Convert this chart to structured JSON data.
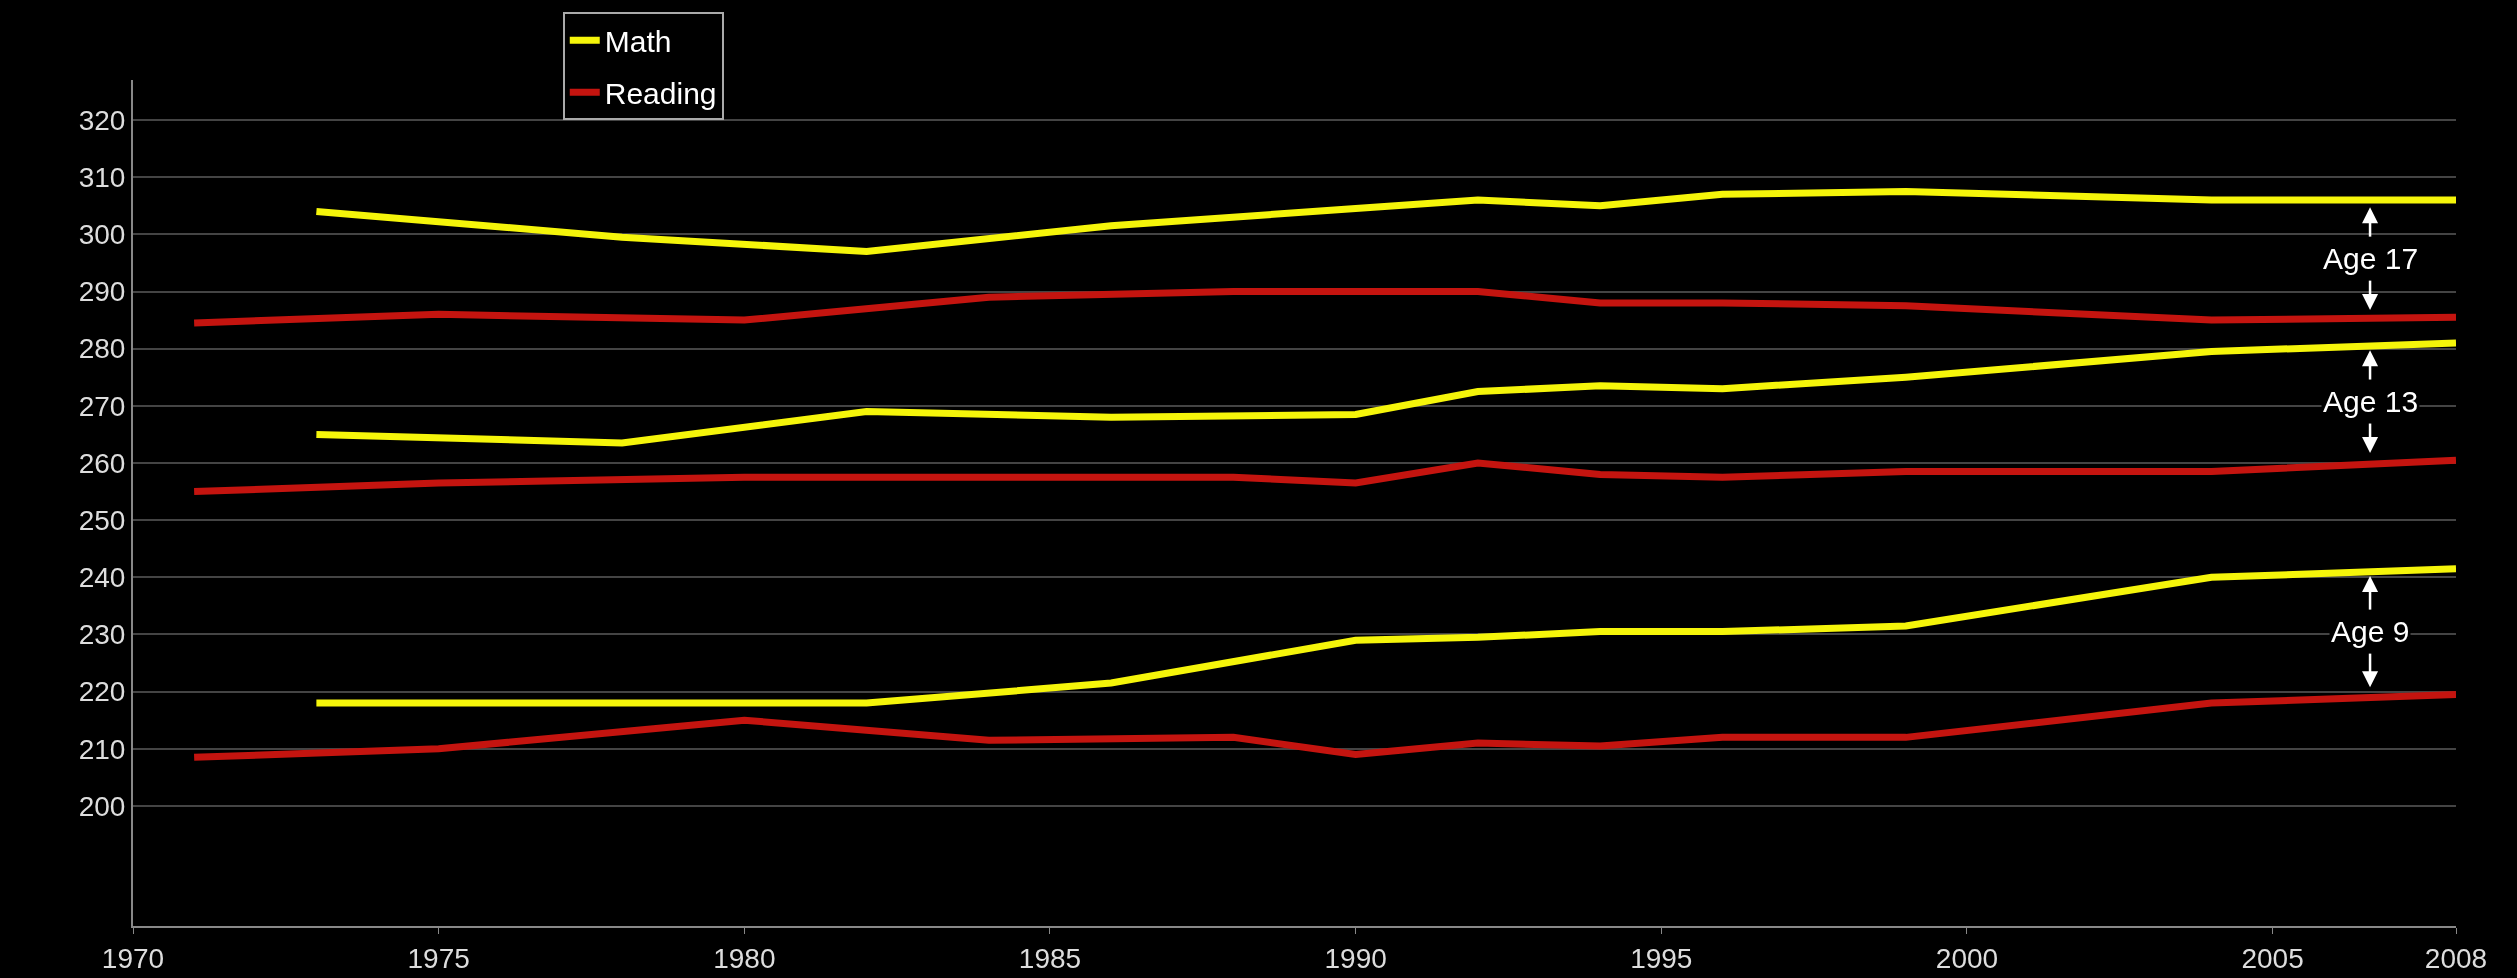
{
  "chart_data": {
    "type": "line",
    "xlim": [
      1970,
      2008
    ],
    "xticks": [
      1970,
      1975,
      1980,
      1985,
      1990,
      1995,
      2000,
      2005,
      2008
    ],
    "ylim": [
      179,
      327
    ],
    "yticks": [
      200,
      210,
      220,
      230,
      240,
      250,
      260,
      270,
      280,
      290,
      300,
      310,
      320
    ],
    "grid": "y",
    "legend": "top left",
    "marker": "none",
    "line_style": "solid",
    "series": [
      {
        "name": "Math",
        "color": "#f5f50a",
        "x": [
          1973,
          1978,
          1982,
          1986,
          1990,
          1992,
          1994,
          1996,
          1999,
          2004,
          2008
        ],
        "values": [
          304,
          299.5,
          297,
          301.5,
          304.5,
          306,
          305,
          307,
          307.5,
          306,
          306
        ]
      },
      {
        "name": "Reading",
        "color": "#c4140f",
        "x": [
          1971,
          1975,
          1980,
          1984,
          1988,
          1990,
          1992,
          1994,
          1996,
          1999,
          2004,
          2008
        ],
        "values": [
          284.5,
          286,
          285,
          289,
          290,
          290,
          290,
          288,
          288,
          287.5,
          285,
          285.5
        ]
      },
      {
        "color": "#f5f50a",
        "x": [
          1973,
          1978,
          1982,
          1986,
          1990,
          1992,
          1994,
          1996,
          1999,
          2004,
          2008
        ],
        "values": [
          265,
          263.5,
          269,
          268,
          268.5,
          272.5,
          273.5,
          273,
          275,
          279.5,
          281
        ]
      },
      {
        "color": "#c4140f",
        "x": [
          1971,
          1975,
          1980,
          1984,
          1988,
          1990,
          1992,
          1994,
          1996,
          1999,
          2004,
          2008
        ],
        "values": [
          255,
          256.5,
          257.5,
          257.5,
          257.5,
          256.5,
          260,
          258,
          257.5,
          258.5,
          258.5,
          260.5
        ]
      },
      {
        "color": "#f5f50a",
        "x": [
          1973,
          1978,
          1982,
          1986,
          1990,
          1992,
          1994,
          1996,
          1999,
          2004,
          2008
        ],
        "values": [
          218,
          218,
          218,
          221.5,
          229,
          229.5,
          230.5,
          230.5,
          231.5,
          240,
          241.5
        ]
      },
      {
        "color": "#c4140f",
        "x": [
          1971,
          1975,
          1980,
          1984,
          1988,
          1990,
          1992,
          1994,
          1996,
          1999,
          2004,
          2008
        ],
        "values": [
          208.5,
          210,
          215,
          211.5,
          212,
          209,
          211,
          210.5,
          212,
          212,
          218,
          219.5
        ]
      }
    ],
    "annotations": [
      "Age 17",
      "Age 13",
      "Age 9"
    ]
  }
}
